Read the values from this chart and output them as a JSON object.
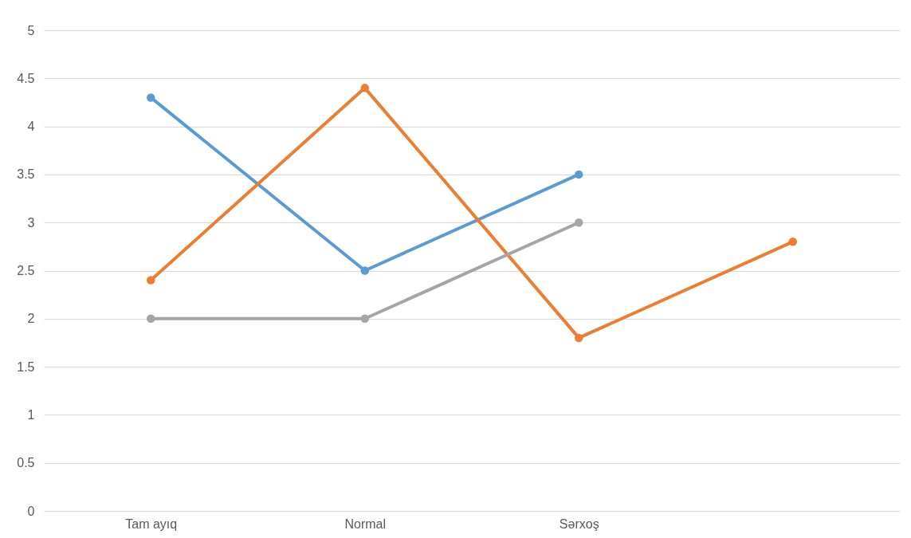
{
  "chart_data": {
    "type": "line",
    "categories": [
      "Tam ayıq",
      "Normal",
      "Sərxoş",
      null
    ],
    "series": [
      {
        "color": "#5b9bd5",
        "values": [
          4.3,
          2.5,
          3.5,
          null
        ]
      },
      {
        "color": "#ed7d31",
        "values": [
          2.4,
          4.4,
          1.8,
          2.8
        ]
      },
      {
        "color": "#a5a5a5",
        "values": [
          2,
          2,
          3,
          null
        ]
      }
    ],
    "ylim": [
      0,
      5
    ],
    "yticks": [
      0,
      0.5,
      1,
      1.5,
      2,
      2.5,
      3,
      3.5,
      4,
      4.5,
      5
    ],
    "grid": "y",
    "legend": false,
    "marker": "circle",
    "line_style": "solid"
  }
}
